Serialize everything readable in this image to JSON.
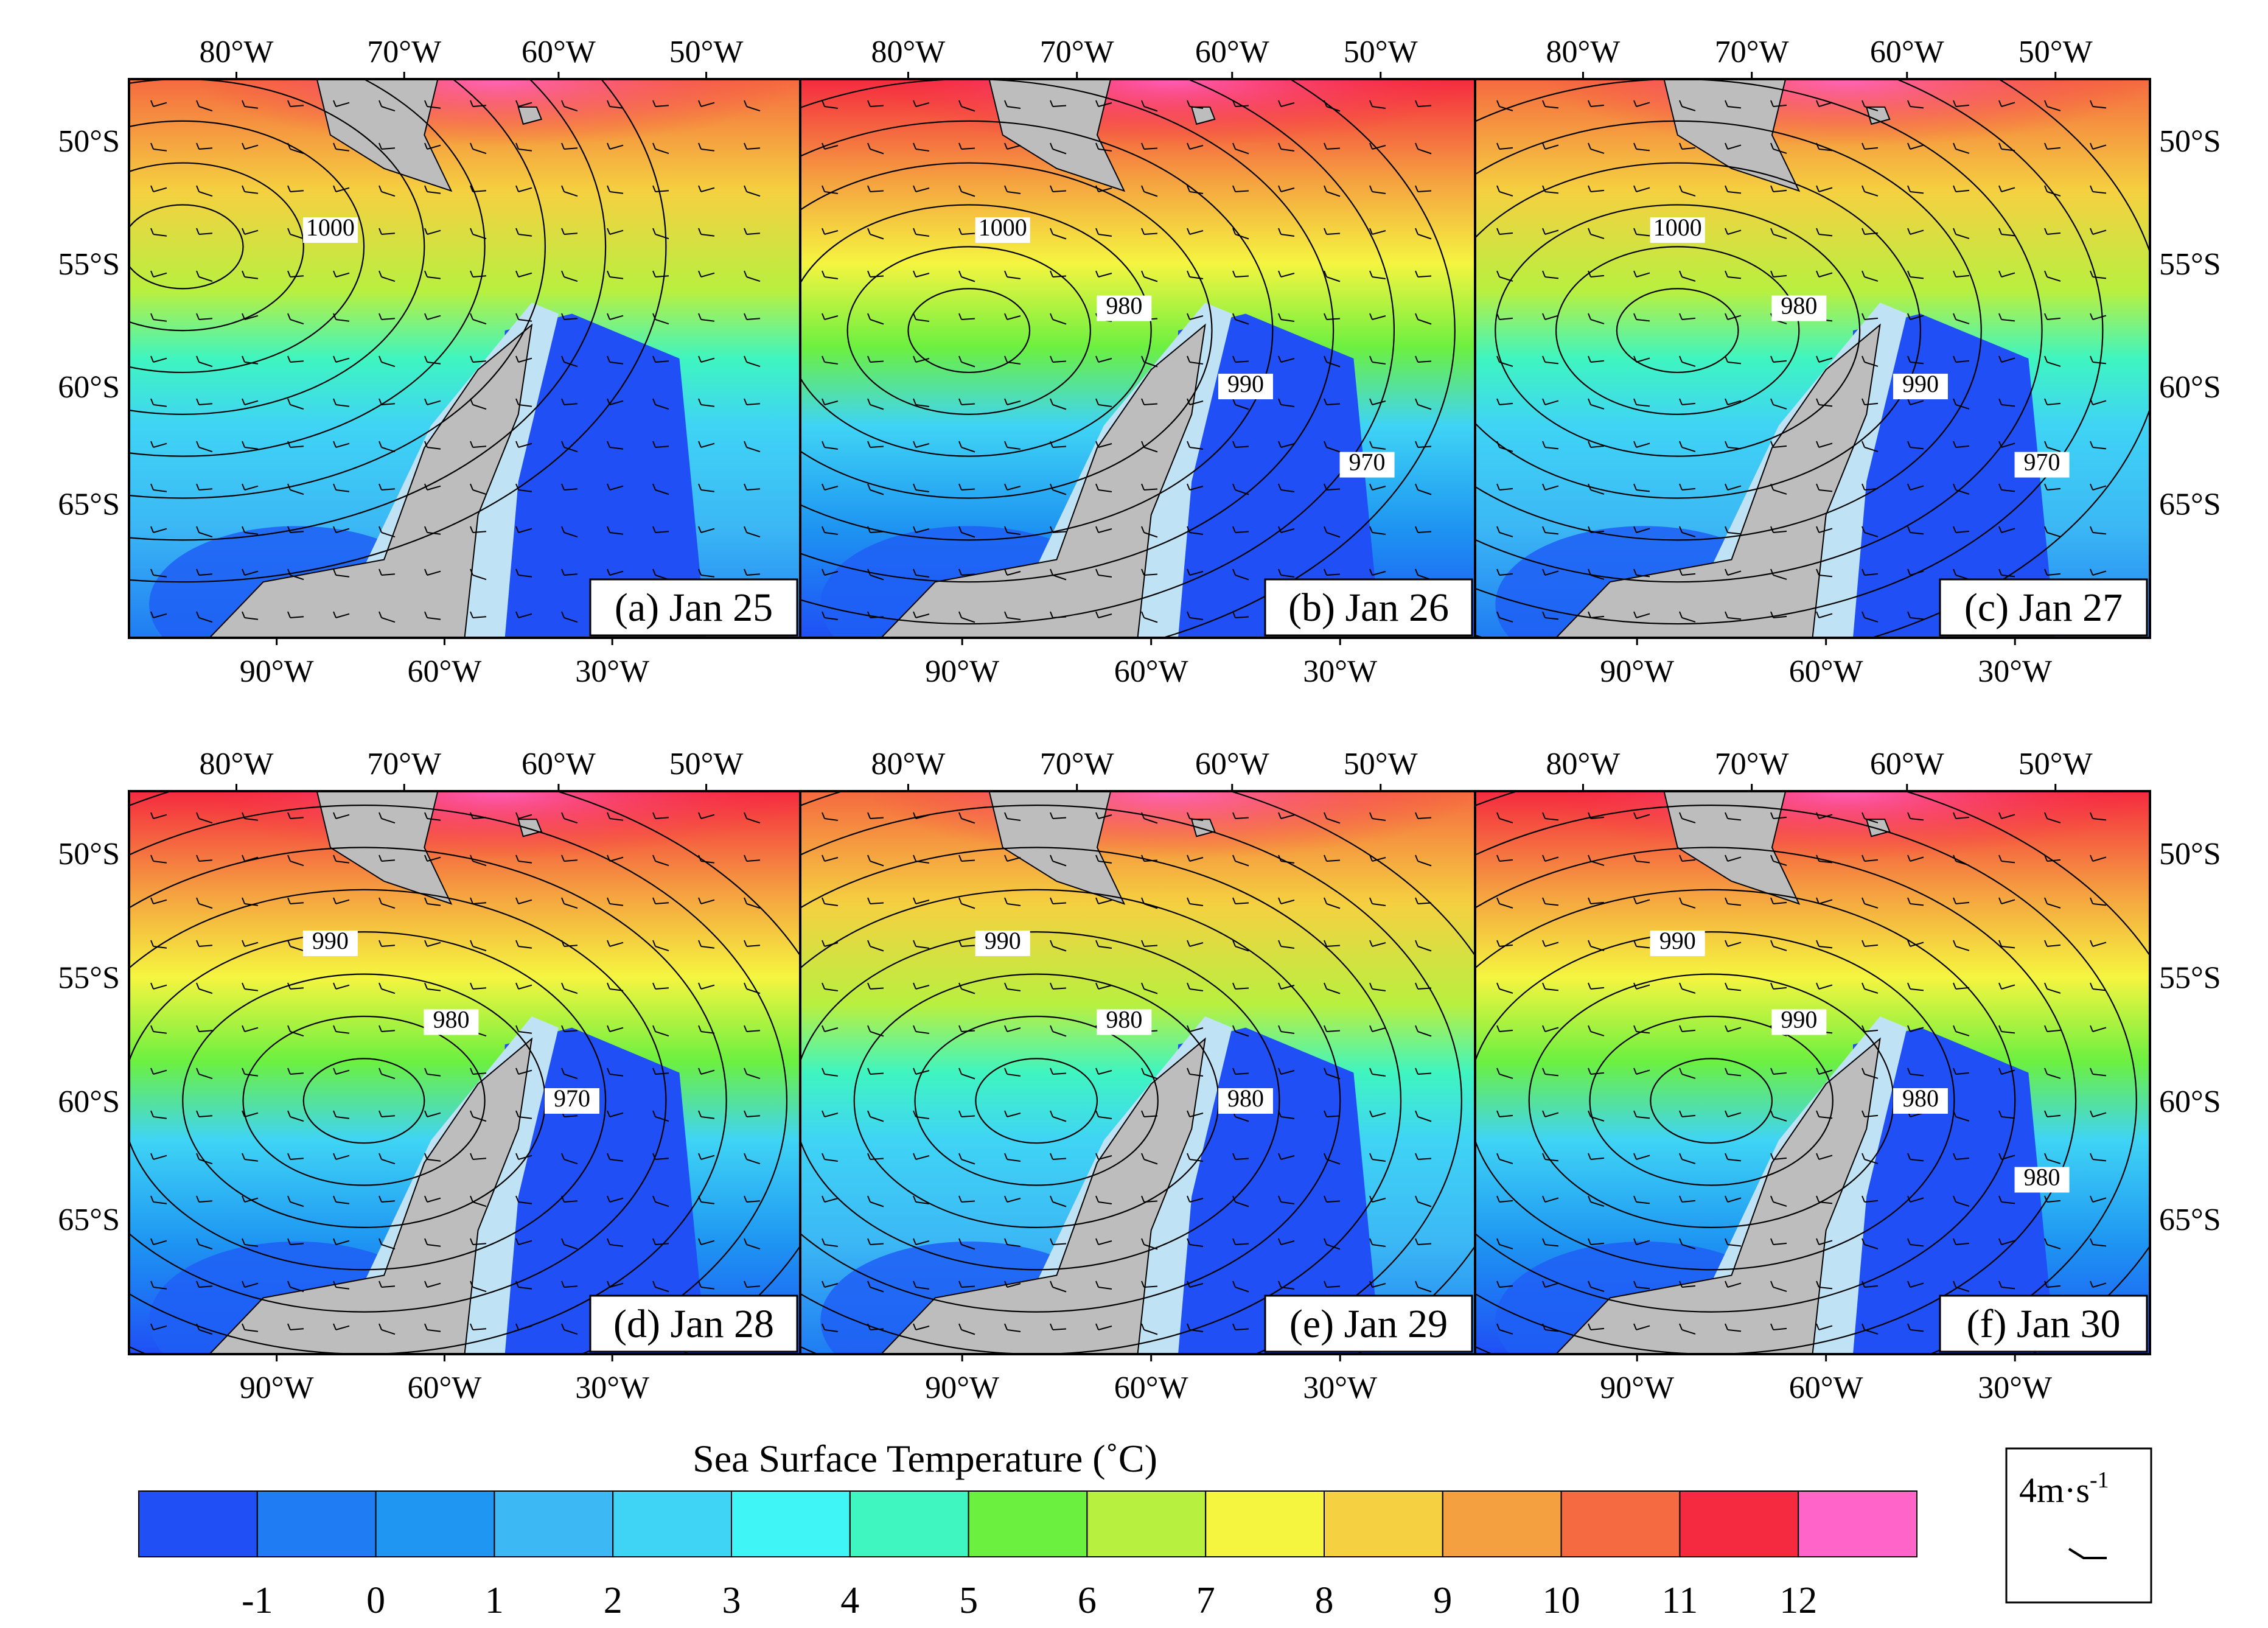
{
  "figure": {
    "colorbar": {
      "title": "Sea Surface Temperature (˚C)",
      "ticks": [
        "-1",
        "0",
        "1",
        "2",
        "3",
        "4",
        "5",
        "6",
        "7",
        "8",
        "9",
        "10",
        "11",
        "12"
      ],
      "colors": [
        "#1f4ff5",
        "#1f7cf2",
        "#1e96f2",
        "#3cb8f5",
        "#3fd4f5",
        "#3ff5f5",
        "#3ff5c0",
        "#6cf040",
        "#b8f040",
        "#f5f540",
        "#f5d040",
        "#f5a040",
        "#f56a40",
        "#f52a40",
        "#ff64c8"
      ]
    },
    "wind_legend": {
      "label": "4m·s",
      "exponent": "-1"
    },
    "top_axis_labels": [
      "80°W",
      "70°W",
      "60°W",
      "50°W"
    ],
    "bottom_axis_labels": [
      "90°W",
      "60°W",
      "30°W"
    ],
    "left_axis_labels": [
      "50°S",
      "55°S",
      "60°S",
      "65°S"
    ],
    "right_axis_labels": [
      "50°S",
      "55°S",
      "60°S",
      "65°S"
    ],
    "land_color": "#bdbdbd",
    "ice_color": "#bfe3f5",
    "panels": [
      {
        "title": "(a) Jan 25",
        "contour_labels": [
          "1000"
        ]
      },
      {
        "title": "(b) Jan 26",
        "contour_labels": [
          "1000",
          "980",
          "990",
          "970"
        ]
      },
      {
        "title": "(c) Jan 27",
        "contour_labels": [
          "1000",
          "980",
          "990",
          "970"
        ]
      },
      {
        "title": "(d) Jan 28",
        "contour_labels": [
          "990",
          "980",
          "970"
        ]
      },
      {
        "title": "(e) Jan 29",
        "contour_labels": [
          "990",
          "980",
          "980"
        ]
      },
      {
        "title": "(f) Jan 30",
        "contour_labels": [
          "990",
          "990",
          "980",
          "980"
        ]
      }
    ]
  }
}
